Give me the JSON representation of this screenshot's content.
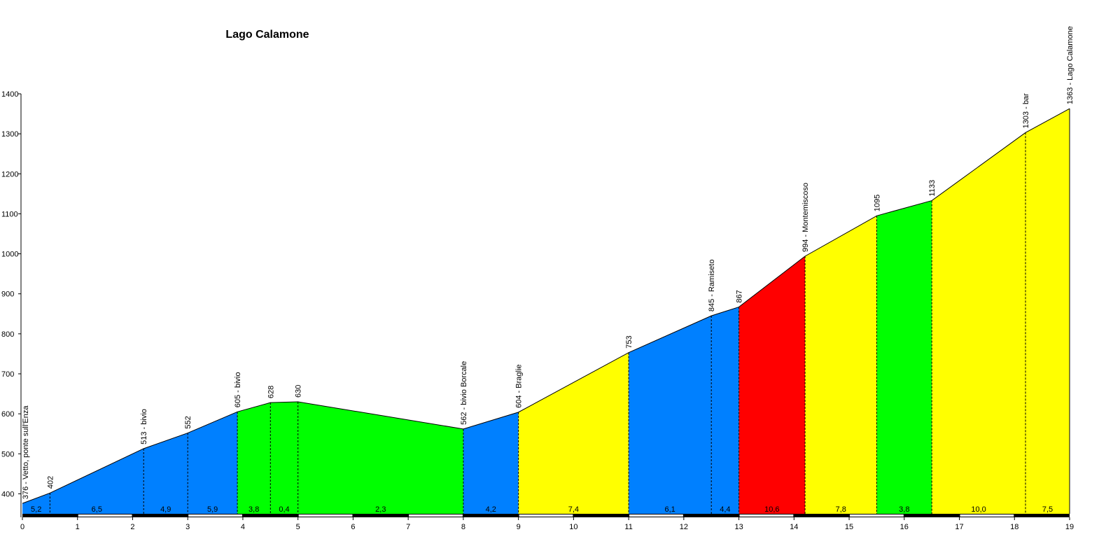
{
  "chart_data": {
    "type": "area",
    "title": "Lago Calamone",
    "xlabel": "",
    "ylabel": "",
    "xlim": [
      0,
      19
    ],
    "ylim": [
      350,
      1400
    ],
    "x_ticks": [
      "0",
      "1",
      "2",
      "3",
      "4",
      "5",
      "6",
      "7",
      "8",
      "9",
      "10",
      "11",
      "12",
      "13",
      "14",
      "15",
      "16",
      "17",
      "18",
      "19"
    ],
    "y_ticks": [
      "400",
      "500",
      "600",
      "700",
      "800",
      "900",
      "1000",
      "1100",
      "1200",
      "1300",
      "1400"
    ],
    "points": [
      {
        "x": 0.0,
        "y": 376,
        "label": "376 - Vetto, ponte sull'Enza"
      },
      {
        "x": 0.5,
        "y": 402,
        "label": "402"
      },
      {
        "x": 2.2,
        "y": 513,
        "label": "513 - bivio"
      },
      {
        "x": 3.0,
        "y": 552,
        "label": "552"
      },
      {
        "x": 3.9,
        "y": 605,
        "label": "605 - bivio"
      },
      {
        "x": 4.5,
        "y": 628,
        "label": "628"
      },
      {
        "x": 5.0,
        "y": 630,
        "label": "630"
      },
      {
        "x": 8.0,
        "y": 562,
        "label": "562 - bivio Borcale"
      },
      {
        "x": 9.0,
        "y": 604,
        "label": "604 - Braglie"
      },
      {
        "x": 11.0,
        "y": 753,
        "label": "753"
      },
      {
        "x": 12.5,
        "y": 845,
        "label": "845 - Ramiseto"
      },
      {
        "x": 13.0,
        "y": 867,
        "label": "867"
      },
      {
        "x": 14.2,
        "y": 994,
        "label": "994 - Montemiscoso"
      },
      {
        "x": 15.5,
        "y": 1095,
        "label": "1095"
      },
      {
        "x": 16.5,
        "y": 1133,
        "label": "1133"
      },
      {
        "x": 18.2,
        "y": 1303,
        "label": "1303 - bar"
      },
      {
        "x": 19.0,
        "y": 1363,
        "label": "1363 - Lago Calamone"
      }
    ],
    "segments": [
      {
        "from": 0.0,
        "to": 0.5,
        "grade": "5,2",
        "color": "#0080ff"
      },
      {
        "from": 0.5,
        "to": 2.2,
        "grade": "6,5",
        "color": "#0080ff"
      },
      {
        "from": 2.2,
        "to": 3.0,
        "grade": "4,9",
        "color": "#0080ff"
      },
      {
        "from": 3.0,
        "to": 3.9,
        "grade": "5,9",
        "color": "#0080ff"
      },
      {
        "from": 3.9,
        "to": 4.5,
        "grade": "3,8",
        "color": "#00ff00"
      },
      {
        "from": 4.5,
        "to": 5.0,
        "grade": "0,4",
        "color": "#00ff00"
      },
      {
        "from": 5.0,
        "to": 8.0,
        "grade": "2,3",
        "color": "#00ff00"
      },
      {
        "from": 8.0,
        "to": 9.0,
        "grade": "4,2",
        "color": "#0080ff"
      },
      {
        "from": 9.0,
        "to": 11.0,
        "grade": "7,4",
        "color": "#ffff00"
      },
      {
        "from": 11.0,
        "to": 12.5,
        "grade": "6,1",
        "color": "#0080ff"
      },
      {
        "from": 12.5,
        "to": 13.0,
        "grade": "4,4",
        "color": "#0080ff"
      },
      {
        "from": 13.0,
        "to": 14.2,
        "grade": "10,6",
        "color": "#ff0000"
      },
      {
        "from": 14.2,
        "to": 15.5,
        "grade": "7,8",
        "color": "#ffff00"
      },
      {
        "from": 15.5,
        "to": 16.5,
        "grade": "3,8",
        "color": "#00ff00"
      },
      {
        "from": 16.5,
        "to": 18.2,
        "grade": "10,0",
        "color": "#ffff00"
      },
      {
        "from": 18.2,
        "to": 19.0,
        "grade": "7,5",
        "color": "#ffff00"
      }
    ],
    "grid": false
  }
}
